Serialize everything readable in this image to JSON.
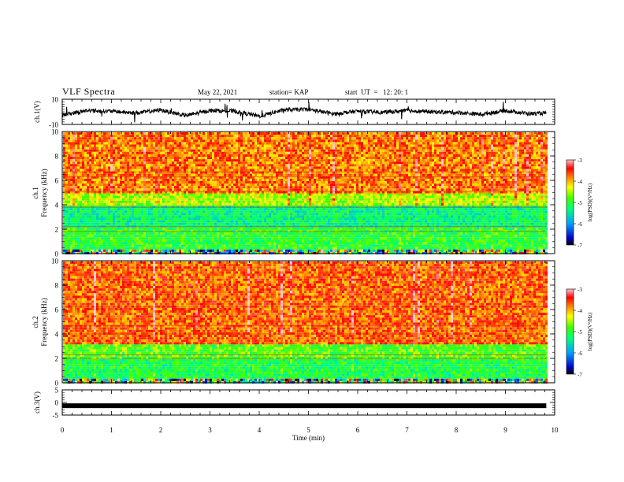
{
  "header": {
    "title": "VLF Spectra",
    "date": "May 22, 2021",
    "station": "station= KAP",
    "start": "start  UT  =   12: 20: 1"
  },
  "chart_data": [
    {
      "type": "line",
      "ylabel": "ch.1(V)",
      "ylim": [
        -10,
        10
      ],
      "y_ticks": [
        "10",
        "-10"
      ],
      "xlim": [
        0,
        10
      ],
      "x_end": 9.83,
      "description_series": [
        {
          "x": 0.0,
          "y": -2.5
        },
        {
          "x": 0.5,
          "y": 1.0
        },
        {
          "x": 1.0,
          "y": 0.5
        },
        {
          "x": 1.5,
          "y": -1.0
        },
        {
          "x": 2.0,
          "y": 1.5
        },
        {
          "x": 2.5,
          "y": -3.0
        },
        {
          "x": 3.0,
          "y": 1.0
        },
        {
          "x": 3.5,
          "y": 0.5
        },
        {
          "x": 4.0,
          "y": -3.5
        },
        {
          "x": 4.5,
          "y": 1.5
        },
        {
          "x": 5.0,
          "y": 2.0
        },
        {
          "x": 5.5,
          "y": -1.5
        },
        {
          "x": 6.0,
          "y": 0.5
        },
        {
          "x": 6.5,
          "y": -0.5
        },
        {
          "x": 7.0,
          "y": 1.0
        },
        {
          "x": 7.5,
          "y": 0.0
        },
        {
          "x": 8.0,
          "y": -0.5
        },
        {
          "x": 8.5,
          "y": -2.0
        },
        {
          "x": 9.0,
          "y": 1.0
        },
        {
          "x": 9.5,
          "y": -1.5
        },
        {
          "x": 9.83,
          "y": -1.0
        }
      ]
    },
    {
      "type": "heatmap",
      "ylabel_top": "ch.1",
      "ylabel": "Frequency  (kHz)",
      "ylim": [
        0,
        10
      ],
      "y_ticks": [
        "0",
        "2",
        "4",
        "6",
        "8",
        "10"
      ],
      "xlim": [
        0,
        10
      ],
      "x_end": 9.83,
      "bands_khz": [
        {
          "from": 0,
          "to": 0.5,
          "level": "mixed"
        },
        {
          "from": 0.5,
          "to": 2.2,
          "level": -5.0
        },
        {
          "from": 2.2,
          "to": 4.0,
          "level": -5.3
        },
        {
          "from": 4.0,
          "to": 5.0,
          "level": -4.5
        },
        {
          "from": 5.0,
          "to": 10,
          "level": -3.8
        }
      ],
      "colorbar": {
        "label": "log(PSD)(V²/Hz)",
        "ticks": [
          "-3",
          "-4",
          "-5",
          "-6",
          "-7"
        ],
        "range": [
          -7,
          -3
        ]
      }
    },
    {
      "type": "heatmap",
      "ylabel_top": "ch.2",
      "ylabel": "Frequency  (kHz)",
      "ylim": [
        0,
        10
      ],
      "y_ticks": [
        "0",
        "2",
        "4",
        "6",
        "8",
        "10"
      ],
      "xlim": [
        0,
        10
      ],
      "x_end": 9.83,
      "bands_khz": [
        {
          "from": 0,
          "to": 0.5,
          "level": "mixed"
        },
        {
          "from": 0.5,
          "to": 2.0,
          "level": -5.1
        },
        {
          "from": 2.0,
          "to": 3.2,
          "level": -4.8
        },
        {
          "from": 3.2,
          "to": 10,
          "level": -3.7
        }
      ],
      "colorbar": {
        "label": "log(PSD)(V²/Hz)",
        "ticks": [
          "-3",
          "-4",
          "-5",
          "-6",
          "-7"
        ],
        "range": [
          -7,
          -3
        ]
      }
    },
    {
      "type": "line",
      "ylabel": "ch.3(V)",
      "ylim": [
        -5,
        5
      ],
      "y_ticks": [
        "5",
        "0",
        "-5"
      ],
      "xlim": [
        0,
        10
      ],
      "x_end": 9.83,
      "constant_value": -1.3
    }
  ],
  "xaxis": {
    "label": "Time  (min)",
    "ticks": [
      "0",
      "1",
      "2",
      "3",
      "4",
      "5",
      "6",
      "7",
      "8",
      "9",
      "10"
    ]
  }
}
